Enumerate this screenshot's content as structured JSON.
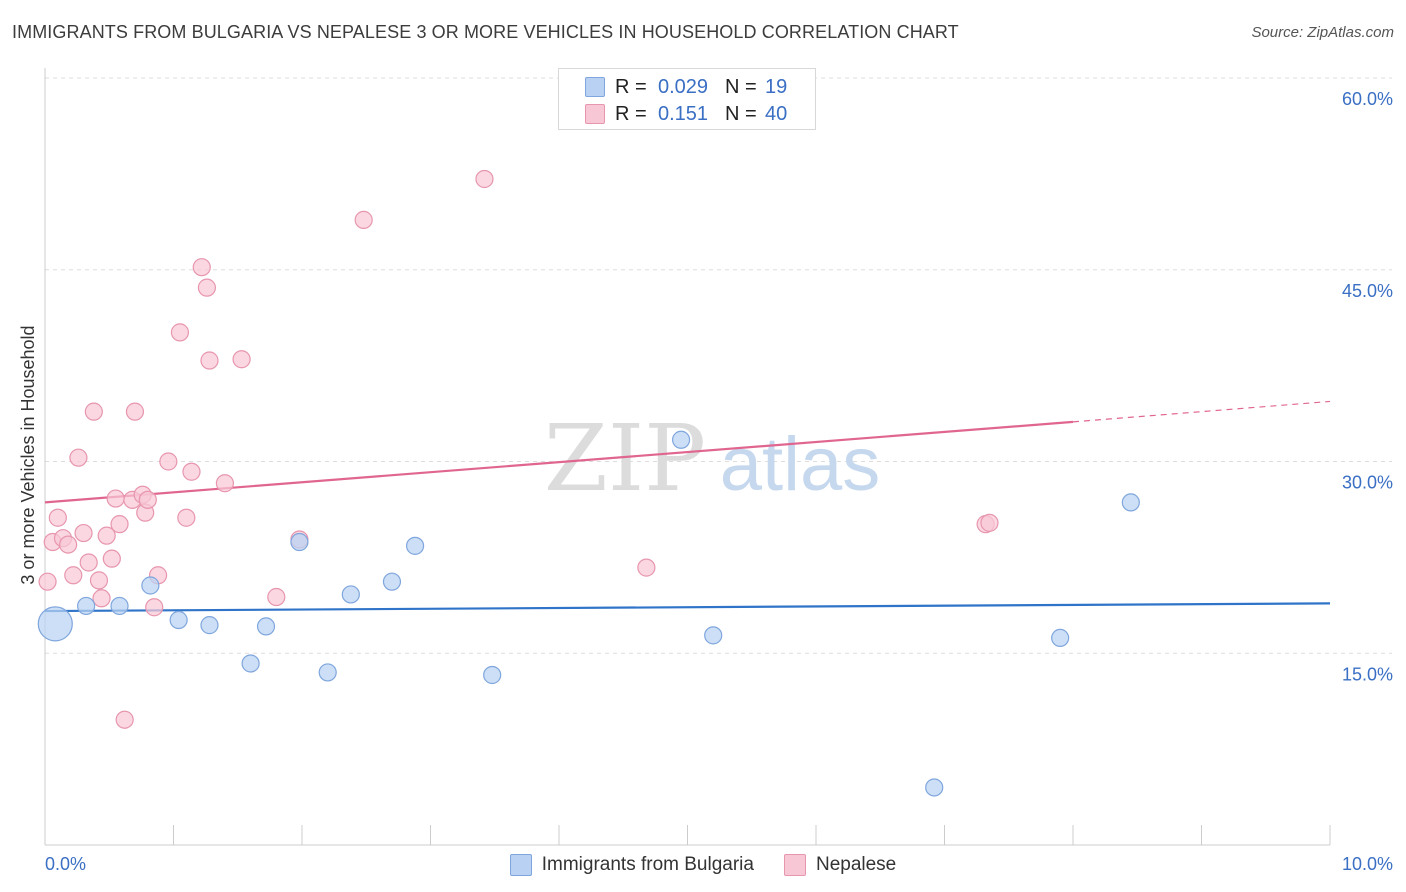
{
  "title": "IMMIGRANTS FROM BULGARIA VS NEPALESE 3 OR MORE VEHICLES IN HOUSEHOLD CORRELATION CHART",
  "source": "Source: ZipAtlas.com",
  "watermark": {
    "zip": "ZIP",
    "atlas": "atlas"
  },
  "colors": {
    "blue_fill": "#b9d2f3",
    "blue_stroke": "#7fa6dd",
    "blue_line": "#2f74c8",
    "pink_fill": "#f8c7d5",
    "pink_stroke": "#e796ae",
    "pink_line": "#e0668f",
    "tick_label": "#3a6fc4",
    "grid": "#dddddd"
  },
  "legend": {
    "blue": {
      "r_label": "R =",
      "r_value": "0.029",
      "n_label": "N =",
      "n_value": "19"
    },
    "pink": {
      "r_label": "R =",
      "r_value": "0.151",
      "n_label": "N =",
      "n_value": "40"
    }
  },
  "chart_data": {
    "type": "scatter",
    "title": "IMMIGRANTS FROM BULGARIA VS NEPALESE 3 OR MORE VEHICLES IN HOUSEHOLD CORRELATION CHART",
    "xlabel": "",
    "ylabel": "3 or more Vehicles in Household",
    "xlim": [
      0,
      10
    ],
    "ylim": [
      0,
      60
    ],
    "x_tick_labels": [
      {
        "value": 0,
        "label": "0.0%"
      },
      {
        "value": 10,
        "label": "10.0%"
      }
    ],
    "y_tick_labels": [
      {
        "value": 15,
        "label": "15.0%"
      },
      {
        "value": 30,
        "label": "30.0%"
      },
      {
        "value": 45,
        "label": "45.0%"
      },
      {
        "value": 60,
        "label": "60.0%"
      }
    ],
    "series": [
      {
        "name": "Immigrants from Bulgaria",
        "color": "blue",
        "points": [
          {
            "x": 0.08,
            "y": 17.3,
            "size": "large"
          },
          {
            "x": 0.32,
            "y": 18.7
          },
          {
            "x": 0.58,
            "y": 18.7
          },
          {
            "x": 0.82,
            "y": 20.3
          },
          {
            "x": 1.04,
            "y": 17.6
          },
          {
            "x": 1.28,
            "y": 17.2
          },
          {
            "x": 1.6,
            "y": 14.2
          },
          {
            "x": 1.72,
            "y": 17.1
          },
          {
            "x": 1.98,
            "y": 23.7
          },
          {
            "x": 2.2,
            "y": 13.5
          },
          {
            "x": 2.38,
            "y": 19.6
          },
          {
            "x": 2.7,
            "y": 20.6
          },
          {
            "x": 2.88,
            "y": 23.4
          },
          {
            "x": 3.48,
            "y": 13.3
          },
          {
            "x": 4.95,
            "y": 31.7
          },
          {
            "x": 5.2,
            "y": 16.4
          },
          {
            "x": 6.92,
            "y": 4.5
          },
          {
            "x": 7.9,
            "y": 16.2
          },
          {
            "x": 8.45,
            "y": 26.8
          }
        ],
        "trend": {
          "x": [
            0,
            10
          ],
          "y": [
            18.3,
            18.9
          ]
        }
      },
      {
        "name": "Nepalese",
        "color": "pink",
        "points": [
          {
            "x": 0.02,
            "y": 20.6
          },
          {
            "x": 0.06,
            "y": 23.7
          },
          {
            "x": 0.1,
            "y": 25.6
          },
          {
            "x": 0.14,
            "y": 24.0
          },
          {
            "x": 0.18,
            "y": 23.5
          },
          {
            "x": 0.22,
            "y": 21.1
          },
          {
            "x": 0.26,
            "y": 30.3
          },
          {
            "x": 0.3,
            "y": 24.4
          },
          {
            "x": 0.34,
            "y": 22.1
          },
          {
            "x": 0.38,
            "y": 33.9
          },
          {
            "x": 0.42,
            "y": 20.7
          },
          {
            "x": 0.44,
            "y": 19.3
          },
          {
            "x": 0.48,
            "y": 24.2
          },
          {
            "x": 0.52,
            "y": 22.4
          },
          {
            "x": 0.55,
            "y": 27.1
          },
          {
            "x": 0.58,
            "y": 25.1
          },
          {
            "x": 0.62,
            "y": 9.8
          },
          {
            "x": 0.68,
            "y": 27.0
          },
          {
            "x": 0.7,
            "y": 33.9
          },
          {
            "x": 0.76,
            "y": 27.4
          },
          {
            "x": 0.78,
            "y": 26.0
          },
          {
            "x": 0.8,
            "y": 27.0
          },
          {
            "x": 0.85,
            "y": 18.6
          },
          {
            "x": 0.88,
            "y": 21.1
          },
          {
            "x": 0.96,
            "y": 30.0
          },
          {
            "x": 1.05,
            "y": 40.1
          },
          {
            "x": 1.1,
            "y": 25.6
          },
          {
            "x": 1.14,
            "y": 29.2
          },
          {
            "x": 1.22,
            "y": 45.2
          },
          {
            "x": 1.26,
            "y": 43.6
          },
          {
            "x": 1.28,
            "y": 37.9
          },
          {
            "x": 1.4,
            "y": 28.3
          },
          {
            "x": 1.53,
            "y": 38.0
          },
          {
            "x": 1.8,
            "y": 19.4
          },
          {
            "x": 1.98,
            "y": 23.9
          },
          {
            "x": 2.48,
            "y": 48.9
          },
          {
            "x": 3.42,
            "y": 52.1
          },
          {
            "x": 4.68,
            "y": 21.7
          },
          {
            "x": 7.32,
            "y": 25.1
          },
          {
            "x": 7.35,
            "y": 25.2
          }
        ],
        "trend": {
          "x": [
            0,
            8
          ],
          "y": [
            26.8,
            33.1
          ]
        },
        "trend_extension": {
          "x": [
            8,
            10
          ],
          "y": [
            33.1,
            34.7
          ]
        }
      }
    ],
    "legend": [
      {
        "label": "Immigrants from Bulgaria",
        "color": "blue"
      },
      {
        "label": "Nepalese",
        "color": "pink"
      }
    ]
  }
}
